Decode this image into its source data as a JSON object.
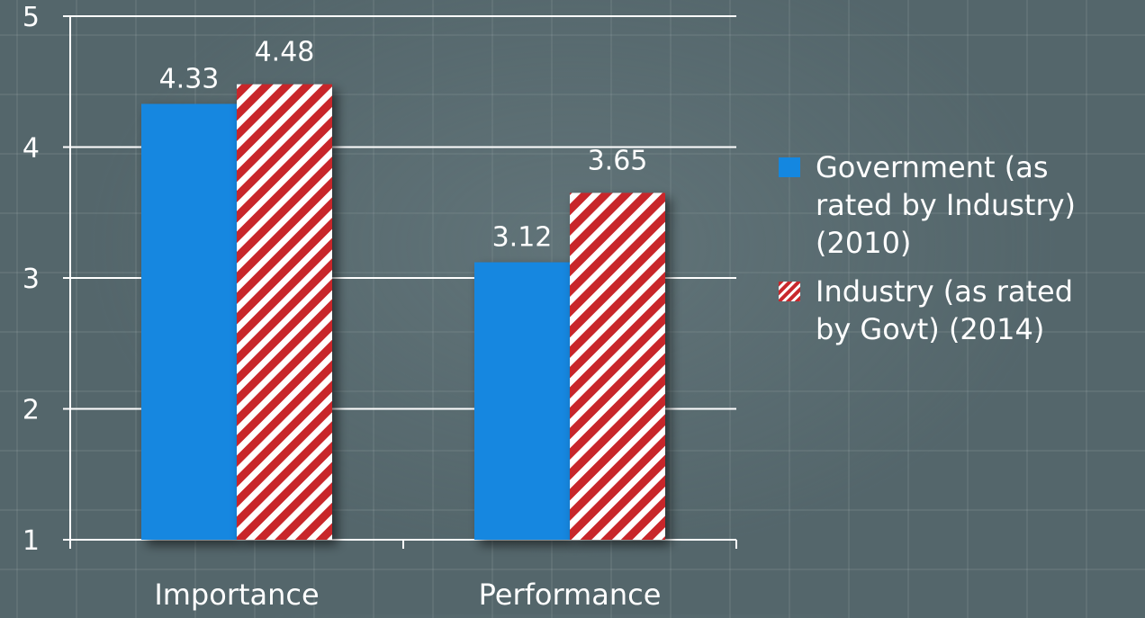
{
  "chart_data": {
    "type": "bar",
    "categories": [
      "Importance",
      "Performance"
    ],
    "series": [
      {
        "name": "Government (as rated by Industry) (2010)",
        "values": [
          4.33,
          3.12
        ],
        "color": "#1487e0",
        "pattern": "solid",
        "legend_lines": [
          "Government (as",
          "rated by Industry)",
          "(2010)"
        ]
      },
      {
        "name": "Industry (as rated by Govt) (2014)",
        "values": [
          4.48,
          3.65
        ],
        "color": "#c8282c",
        "pattern": "diagonal-stripes",
        "legend_lines": [
          "Industry (as rated",
          "by Govt) (2014)"
        ]
      }
    ],
    "y_ticks": [
      "1",
      "2",
      "3",
      "4",
      "5"
    ],
    "ylim": [
      1,
      5
    ],
    "grid": true,
    "legend_position": "right"
  }
}
